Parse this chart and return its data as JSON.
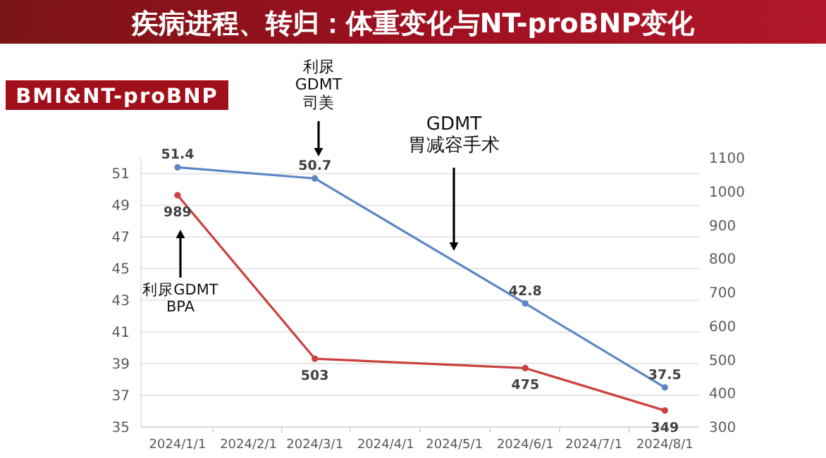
{
  "chart_data": {
    "type": "line",
    "title": "疾病进程、转归：体重变化与NT-proBNP变化",
    "subtitle": "BMI&NT-proBNP",
    "x": [
      "2024-01-01",
      "2024-03-01",
      "2024-06-01",
      "2024-08-01"
    ],
    "xlim": [
      "2023-12-16",
      "2024-08-16"
    ],
    "xticks": [
      {
        "value": "2024-01-01",
        "label": "2024/1/1"
      },
      {
        "value": "2024-02-01",
        "label": "2024/2/1"
      },
      {
        "value": "2024-03-01",
        "label": "2024/3/1"
      },
      {
        "value": "2024-04-01",
        "label": "2024/4/1"
      },
      {
        "value": "2024-05-01",
        "label": "2024/5/1"
      },
      {
        "value": "2024-06-01",
        "label": "2024/6/1"
      },
      {
        "value": "2024-07-01",
        "label": "2024/7/1"
      },
      {
        "value": "2024-08-01",
        "label": "2024/8/1"
      }
    ],
    "series": [
      {
        "color": "#5b86c5",
        "values": [
          51.4,
          50.7,
          42.8,
          37.5
        ]
      },
      {
        "color": "#c9423f",
        "values": [
          989,
          503,
          475,
          349
        ],
        "axis": "y2"
      }
    ],
    "ylim": [
      35,
      52
    ],
    "yticks": [
      35,
      37,
      39,
      41,
      43,
      45,
      47,
      49,
      51
    ],
    "y2lim": [
      300,
      1100
    ],
    "y2ticks": [
      300,
      400,
      500,
      600,
      700,
      800,
      900,
      1000,
      1100
    ],
    "grid": "y",
    "marker": "circle",
    "data_labels": true,
    "annotations": [
      "利尿\nGDMT\n司美",
      "GDMT\n胃减容手术",
      "利尿GDMT\nBPA"
    ]
  }
}
